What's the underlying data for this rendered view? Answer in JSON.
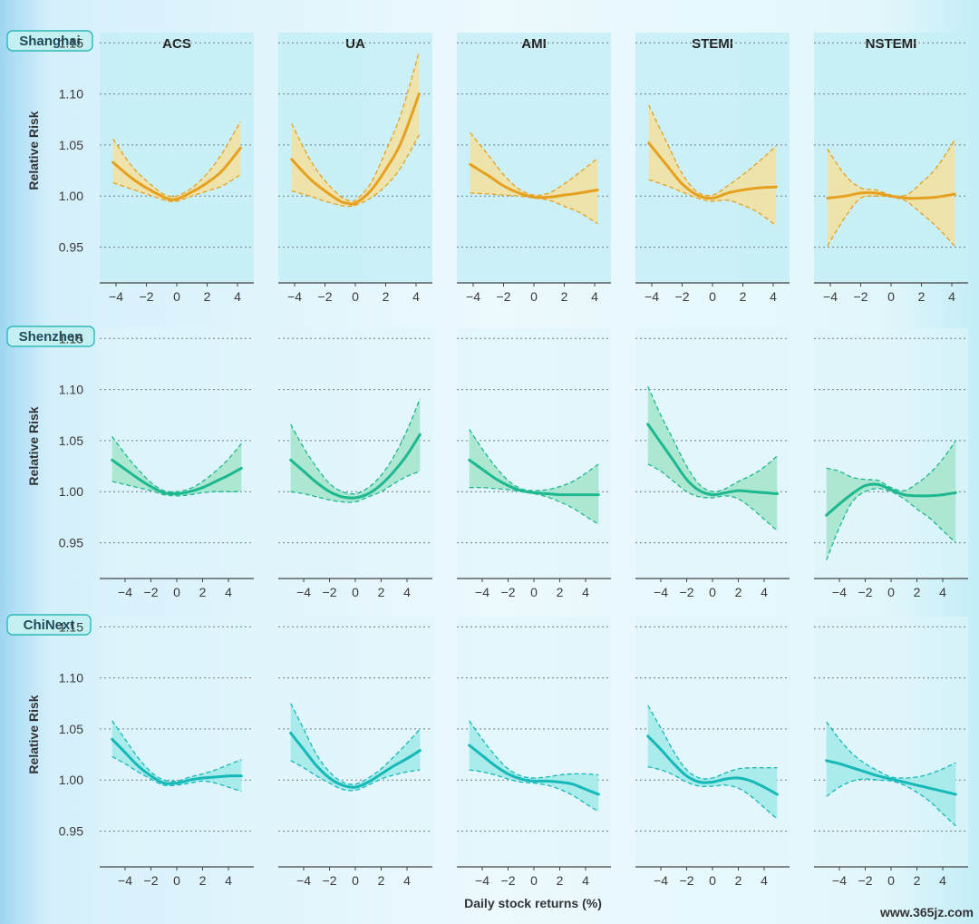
{
  "chart_data": {
    "type": "line",
    "title": "",
    "ylabel": "Relative Risk",
    "xlabel": "Daily stock returns (%)",
    "ylim": [
      0.915,
      1.16
    ],
    "yticks": [
      0.95,
      1.0,
      1.05,
      1.1,
      1.15
    ],
    "ytick_labels": [
      "0.95",
      "1.00",
      "1.05",
      "1.10",
      "1.15"
    ],
    "columns": [
      "ACS",
      "UA",
      "AMI",
      "STEMI",
      "NSTEMI"
    ],
    "colors": {
      "Shanghai": "#e6a020",
      "Shenzhen": "#1db890",
      "ChiNext": "#16b8b8"
    },
    "fills": {
      "Shanghai": "#efe1a6",
      "Shenzhen": "#a9e6cf",
      "ChiNext": "#a6eaea"
    },
    "rows": [
      {
        "market": "Shanghai",
        "xlim": [
          -4.6,
          4.6
        ],
        "xticks": [
          -4,
          -2,
          0,
          2,
          4
        ],
        "xtick_labels": [
          "−4",
          "−2",
          "0",
          "2",
          "4"
        ],
        "series": [
          {
            "name": "ACS",
            "x": [
              -4.2,
              -3,
              -2,
              -1,
              -0.5,
              0,
              1,
              2,
              3,
              4.2
            ],
            "rr": [
              1.033,
              1.018,
              1.008,
              1.0,
              0.997,
              0.997,
              1.004,
              1.013,
              1.025,
              1.047
            ],
            "lower": [
              1.013,
              1.007,
              1.002,
              0.997,
              0.995,
              0.995,
              1.0,
              1.005,
              1.01,
              1.021
            ],
            "upper": [
              1.056,
              1.03,
              1.015,
              1.003,
              1.0,
              1.0,
              1.008,
              1.022,
              1.042,
              1.073
            ]
          },
          {
            "name": "UA",
            "x": [
              -4.2,
              -3,
              -2,
              -1,
              -0.5,
              0,
              1,
              2,
              3,
              4.2
            ],
            "rr": [
              1.036,
              1.017,
              1.005,
              0.995,
              0.993,
              0.993,
              1.005,
              1.026,
              1.052,
              1.1
            ],
            "lower": [
              1.005,
              1.0,
              0.995,
              0.991,
              0.99,
              0.991,
              0.998,
              1.01,
              1.028,
              1.06
            ],
            "upper": [
              1.071,
              1.036,
              1.015,
              1.0,
              0.996,
              0.996,
              1.012,
              1.044,
              1.08,
              1.141
            ]
          },
          {
            "name": "AMI",
            "x": [
              -4.2,
              -3,
              -2,
              -1,
              0,
              1,
              2,
              3,
              4.2
            ],
            "rr": [
              1.031,
              1.02,
              1.01,
              1.003,
              0.999,
              0.999,
              1.001,
              1.003,
              1.006
            ],
            "lower": [
              1.003,
              1.002,
              1.001,
              1.0,
              0.998,
              0.996,
              0.99,
              0.984,
              0.973
            ],
            "upper": [
              1.062,
              1.04,
              1.021,
              1.007,
              1.001,
              1.003,
              1.012,
              1.023,
              1.037
            ]
          },
          {
            "name": "STEMI",
            "x": [
              -4.2,
              -3,
              -2,
              -1,
              0,
              1,
              2,
              3,
              4.2
            ],
            "rr": [
              1.052,
              1.03,
              1.012,
              1.001,
              0.998,
              1.003,
              1.006,
              1.008,
              1.009
            ],
            "lower": [
              1.016,
              1.01,
              1.004,
              0.998,
              0.995,
              0.996,
              0.991,
              0.984,
              0.971
            ],
            "upper": [
              1.089,
              1.052,
              1.022,
              1.004,
              1.001,
              1.01,
              1.021,
              1.033,
              1.049
            ]
          },
          {
            "name": "NSTEMI",
            "x": [
              -4.2,
              -3,
              -2,
              -1,
              0,
              1,
              2,
              3,
              4.2
            ],
            "rr": [
              0.998,
              1.0,
              1.003,
              1.003,
              1.0,
              0.998,
              0.998,
              0.999,
              1.002
            ],
            "lower": [
              0.951,
              0.98,
              0.998,
              1.0,
              0.999,
              0.995,
              0.983,
              0.97,
              0.951
            ],
            "upper": [
              1.046,
              1.02,
              1.008,
              1.006,
              1.001,
              1.001,
              1.013,
              1.028,
              1.055
            ]
          }
        ]
      },
      {
        "market": "Shenzhen",
        "xlim": [
          -5.4,
          5.4
        ],
        "xticks": [
          -4,
          -2,
          0,
          2,
          4
        ],
        "xtick_labels": [
          "−4",
          "−2",
          "0",
          "2",
          "4"
        ],
        "series": [
          {
            "name": "ACS",
            "x": [
              -5,
              -4,
              -3,
              -2,
              -1,
              0,
              1,
              2,
              3,
              4,
              5
            ],
            "rr": [
              1.031,
              1.022,
              1.013,
              1.005,
              0.999,
              0.998,
              1.0,
              1.004,
              1.01,
              1.016,
              1.023
            ],
            "lower": [
              1.01,
              1.007,
              1.004,
              1.001,
              0.997,
              0.996,
              0.997,
              0.999,
              1.0,
              1.0,
              1.0
            ],
            "upper": [
              1.054,
              1.037,
              1.022,
              1.009,
              1.001,
              1.0,
              1.003,
              1.01,
              1.02,
              1.032,
              1.047
            ]
          },
          {
            "name": "UA",
            "x": [
              -5,
              -4,
              -3,
              -2,
              -1,
              0,
              1,
              2,
              3,
              4,
              5
            ],
            "rr": [
              1.031,
              1.02,
              1.009,
              1.0,
              0.995,
              0.994,
              0.998,
              1.007,
              1.02,
              1.036,
              1.056
            ],
            "lower": [
              1.0,
              0.998,
              0.995,
              0.992,
              0.99,
              0.99,
              0.995,
              1.0,
              1.008,
              1.015,
              1.02
            ],
            "upper": [
              1.066,
              1.043,
              1.024,
              1.008,
              1.0,
              0.998,
              1.004,
              1.016,
              1.035,
              1.06,
              1.091
            ]
          },
          {
            "name": "AMI",
            "x": [
              -5,
              -4,
              -3,
              -2,
              -1,
              0,
              1,
              2,
              3,
              4,
              5
            ],
            "rr": [
              1.031,
              1.022,
              1.013,
              1.006,
              1.001,
              0.999,
              0.998,
              0.997,
              0.997,
              0.997,
              0.997
            ],
            "lower": [
              1.004,
              1.004,
              1.003,
              1.002,
              1.0,
              0.998,
              0.995,
              0.99,
              0.984,
              0.976,
              0.968
            ],
            "upper": [
              1.061,
              1.042,
              1.025,
              1.011,
              1.003,
              1.001,
              1.002,
              1.005,
              1.01,
              1.018,
              1.027
            ]
          },
          {
            "name": "STEMI",
            "x": [
              -5,
              -4,
              -3,
              -2,
              -1,
              0,
              1,
              2,
              3,
              4,
              5
            ],
            "rr": [
              1.066,
              1.048,
              1.03,
              1.012,
              1.001,
              0.997,
              0.999,
              1.001,
              1.0,
              0.999,
              0.998
            ],
            "lower": [
              1.027,
              1.02,
              1.01,
              1.0,
              0.995,
              0.994,
              0.996,
              0.993,
              0.984,
              0.973,
              0.962
            ],
            "upper": [
              1.103,
              1.075,
              1.05,
              1.025,
              1.007,
              1.0,
              1.003,
              1.01,
              1.016,
              1.024,
              1.035
            ]
          },
          {
            "name": "NSTEMI",
            "x": [
              -5,
              -4,
              -3,
              -2,
              -1,
              0,
              1,
              2,
              3,
              4,
              5
            ],
            "rr": [
              0.977,
              0.988,
              0.998,
              1.006,
              1.007,
              1.002,
              0.997,
              0.996,
              0.996,
              0.997,
              0.999
            ],
            "lower": [
              0.933,
              0.965,
              0.99,
              1.0,
              1.003,
              1.0,
              0.993,
              0.983,
              0.974,
              0.962,
              0.95
            ],
            "upper": [
              1.023,
              1.02,
              1.014,
              1.012,
              1.011,
              1.004,
              1.001,
              1.008,
              1.018,
              1.032,
              1.05
            ]
          }
        ]
      },
      {
        "market": "ChiNext",
        "xlim": [
          -5.4,
          5.4
        ],
        "xticks": [
          -4,
          -2,
          0,
          2,
          4
        ],
        "xtick_labels": [
          "−4",
          "−2",
          "0",
          "2",
          "4"
        ],
        "series": [
          {
            "name": "ACS",
            "x": [
              -5,
              -4,
              -3,
              -2,
              -1,
              0,
              1,
              2,
              3,
              4,
              5
            ],
            "rr": [
              1.04,
              1.027,
              1.014,
              1.004,
              0.997,
              0.997,
              1.0,
              1.002,
              1.003,
              1.004,
              1.004
            ],
            "lower": [
              1.023,
              1.016,
              1.008,
              1.001,
              0.995,
              0.995,
              0.997,
              0.999,
              0.997,
              0.993,
              0.989
            ],
            "upper": [
              1.058,
              1.04,
              1.022,
              1.008,
              1.0,
              0.999,
              1.003,
              1.006,
              1.01,
              1.015,
              1.02
            ]
          },
          {
            "name": "UA",
            "x": [
              -5,
              -4,
              -3,
              -2,
              -1,
              0,
              1,
              2,
              3,
              4,
              5
            ],
            "rr": [
              1.046,
              1.03,
              1.014,
              1.002,
              0.995,
              0.993,
              0.998,
              1.006,
              1.014,
              1.021,
              1.029
            ],
            "lower": [
              1.019,
              1.012,
              1.004,
              0.997,
              0.991,
              0.99,
              0.995,
              1.001,
              1.005,
              1.008,
              1.01
            ],
            "upper": [
              1.075,
              1.05,
              1.025,
              1.008,
              0.998,
              0.996,
              1.002,
              1.011,
              1.023,
              1.036,
              1.05
            ]
          },
          {
            "name": "AMI",
            "x": [
              -5,
              -4,
              -3,
              -2,
              -1,
              0,
              1,
              2,
              3,
              4,
              5
            ],
            "rr": [
              1.034,
              1.024,
              1.014,
              1.006,
              1.001,
              0.999,
              0.999,
              0.998,
              0.996,
              0.991,
              0.986
            ],
            "lower": [
              1.01,
              1.008,
              1.005,
              1.001,
              0.998,
              0.997,
              0.995,
              0.991,
              0.985,
              0.977,
              0.969
            ],
            "upper": [
              1.058,
              1.04,
              1.024,
              1.011,
              1.004,
              1.002,
              1.003,
              1.005,
              1.006,
              1.006,
              1.005
            ]
          },
          {
            "name": "STEMI",
            "x": [
              -5,
              -4,
              -3,
              -2,
              -1,
              0,
              1,
              2,
              3,
              4,
              5
            ],
            "rr": [
              1.043,
              1.03,
              1.016,
              1.004,
              0.998,
              0.998,
              1.001,
              1.002,
              0.999,
              0.993,
              0.986
            ],
            "lower": [
              1.013,
              1.01,
              1.005,
              0.998,
              0.994,
              0.994,
              0.995,
              0.992,
              0.984,
              0.973,
              0.962
            ],
            "upper": [
              1.073,
              1.051,
              1.028,
              1.01,
              1.002,
              1.002,
              1.007,
              1.011,
              1.012,
              1.012,
              1.012
            ]
          },
          {
            "name": "NSTEMI",
            "x": [
              -5,
              -4,
              -3,
              -2,
              -1,
              0,
              1,
              2,
              3,
              4,
              5
            ],
            "rr": [
              1.019,
              1.016,
              1.012,
              1.008,
              1.004,
              1.001,
              0.998,
              0.995,
              0.992,
              0.989,
              0.986
            ],
            "lower": [
              0.984,
              0.993,
              0.999,
              1.001,
              1.0,
              0.999,
              0.995,
              0.988,
              0.979,
              0.967,
              0.955
            ],
            "upper": [
              1.057,
              1.04,
              1.026,
              1.016,
              1.009,
              1.003,
              1.002,
              1.003,
              1.006,
              1.011,
              1.017
            ]
          }
        ]
      }
    ]
  },
  "watermark": "www.365jz.com"
}
